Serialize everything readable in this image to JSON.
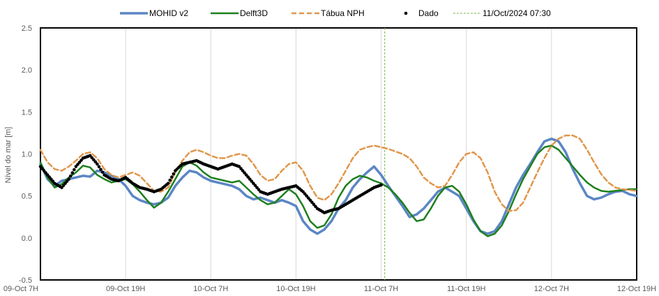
{
  "chart_data": {
    "type": "line",
    "ylabel": "Nível do mar [m]",
    "ylim": [
      -0.5,
      2.5
    ],
    "yticks": [
      "2.5",
      "2.0",
      "1.5",
      "1.0",
      "0.5",
      "0.0",
      "-0.5"
    ],
    "x_start": "09-Oct 7H",
    "x_end": "12-Oct 19H",
    "xticks": [
      "09-Oct 7H",
      "09-Oct 19H",
      "10-Oct 7H",
      "10-Oct 19H",
      "11-Oct 7H",
      "11-Oct 19H",
      "12-Oct 7H",
      "12-Oct 19H"
    ],
    "grid": "vertical",
    "legend": [
      {
        "label": "MOHID v2",
        "color": "#5b86c4",
        "style": "solid"
      },
      {
        "label": "Delft3D",
        "color": "#1d7f1d",
        "style": "solid"
      },
      {
        "label": "Tábua NPH",
        "color": "#e0964a",
        "style": "dashed"
      },
      {
        "label": "Dado",
        "color": "#000000",
        "style": "dots"
      },
      {
        "label": "11/Oct/2024 07:30",
        "color": "#7db544",
        "style": "dashed"
      }
    ],
    "marker_line_hours": 48.5,
    "series": [
      {
        "name": "MOHID v2",
        "color": "#5b86c4",
        "x": [
          0,
          1,
          2,
          3,
          4,
          5,
          6,
          7,
          8,
          9,
          10,
          11,
          12,
          13,
          14,
          15,
          16,
          17,
          18,
          19,
          20,
          21,
          22,
          23,
          24,
          25,
          26,
          27,
          28,
          29,
          30,
          31,
          32,
          33,
          34,
          35,
          36,
          37,
          38,
          39,
          40,
          41,
          42,
          43,
          44,
          45,
          46,
          47,
          48,
          49,
          50,
          51,
          52,
          53,
          54,
          55,
          56,
          57,
          58,
          59,
          60,
          61,
          62,
          63,
          64,
          65,
          66,
          67,
          68,
          69,
          70,
          71,
          72,
          73,
          74,
          75,
          76,
          77,
          78,
          79,
          80,
          81,
          82,
          83,
          84
        ],
        "y": [
          0.88,
          0.7,
          0.62,
          0.68,
          0.7,
          0.72,
          0.74,
          0.73,
          0.8,
          0.78,
          0.74,
          0.7,
          0.62,
          0.5,
          0.45,
          0.42,
          0.4,
          0.42,
          0.48,
          0.62,
          0.72,
          0.8,
          0.78,
          0.72,
          0.68,
          0.66,
          0.64,
          0.62,
          0.58,
          0.5,
          0.46,
          0.48,
          0.45,
          0.42,
          0.45,
          0.42,
          0.38,
          0.2,
          0.1,
          0.05,
          0.1,
          0.2,
          0.35,
          0.45,
          0.6,
          0.7,
          0.78,
          0.85,
          0.75,
          0.62,
          0.5,
          0.38,
          0.25,
          0.28,
          0.35,
          0.45,
          0.55,
          0.6,
          0.55,
          0.5,
          0.35,
          0.2,
          0.08,
          0.05,
          0.08,
          0.2,
          0.4,
          0.6,
          0.75,
          0.88,
          1.02,
          1.15,
          1.18,
          1.15,
          1.02,
          0.82,
          0.65,
          0.5,
          0.46,
          0.48,
          0.52,
          0.55,
          0.56,
          0.52,
          0.5
        ]
      },
      {
        "name": "Delft3D",
        "color": "#1d7f1d",
        "x": [
          0,
          1,
          2,
          3,
          4,
          5,
          6,
          7,
          8,
          9,
          10,
          11,
          12,
          13,
          14,
          15,
          16,
          17,
          18,
          19,
          20,
          21,
          22,
          23,
          24,
          25,
          26,
          27,
          28,
          29,
          30,
          31,
          32,
          33,
          34,
          35,
          36,
          37,
          38,
          39,
          40,
          41,
          42,
          43,
          44,
          45,
          46,
          47,
          48,
          49,
          50,
          51,
          52,
          53,
          54,
          55,
          56,
          57,
          58,
          59,
          60,
          61,
          62,
          63,
          64,
          65,
          66,
          67,
          68,
          69,
          70,
          71,
          72,
          73,
          74,
          75,
          76,
          77,
          78,
          79,
          80,
          81,
          82,
          83,
          84
        ],
        "y": [
          0.9,
          0.72,
          0.6,
          0.64,
          0.72,
          0.78,
          0.86,
          0.84,
          0.75,
          0.7,
          0.66,
          0.68,
          0.7,
          0.64,
          0.55,
          0.45,
          0.36,
          0.42,
          0.55,
          0.7,
          0.85,
          0.9,
          0.86,
          0.78,
          0.72,
          0.7,
          0.68,
          0.66,
          0.68,
          0.6,
          0.52,
          0.45,
          0.4,
          0.42,
          0.5,
          0.58,
          0.52,
          0.38,
          0.2,
          0.12,
          0.15,
          0.28,
          0.48,
          0.62,
          0.7,
          0.74,
          0.72,
          0.68,
          0.65,
          0.6,
          0.52,
          0.42,
          0.3,
          0.2,
          0.22,
          0.35,
          0.5,
          0.6,
          0.62,
          0.55,
          0.4,
          0.22,
          0.08,
          0.02,
          0.05,
          0.15,
          0.32,
          0.52,
          0.7,
          0.85,
          1.0,
          1.08,
          1.1,
          1.05,
          0.95,
          0.85,
          0.75,
          0.66,
          0.6,
          0.56,
          0.55,
          0.56,
          0.57,
          0.58,
          0.58
        ]
      },
      {
        "name": "Tábua NPH",
        "color": "#e0964a",
        "x": [
          0,
          1,
          2,
          3,
          4,
          5,
          6,
          7,
          8,
          9,
          10,
          11,
          12,
          13,
          14,
          15,
          16,
          17,
          18,
          19,
          20,
          21,
          22,
          23,
          24,
          25,
          26,
          27,
          28,
          29,
          30,
          31,
          32,
          33,
          34,
          35,
          36,
          37,
          38,
          39,
          40,
          41,
          42,
          43,
          44,
          45,
          46,
          47,
          48,
          49,
          50,
          51,
          52,
          53,
          54,
          55,
          56,
          57,
          58,
          59,
          60,
          61,
          62,
          63,
          64,
          65,
          66,
          67,
          68,
          69,
          70,
          71,
          72,
          73,
          74,
          75,
          76,
          77,
          78,
          79,
          80,
          81,
          82,
          83,
          84
        ],
        "y": [
          1.05,
          0.9,
          0.82,
          0.8,
          0.85,
          0.92,
          1.0,
          1.02,
          0.95,
          0.82,
          0.75,
          0.72,
          0.75,
          0.78,
          0.74,
          0.65,
          0.56,
          0.55,
          0.6,
          0.78,
          0.92,
          1.02,
          1.05,
          1.02,
          0.98,
          0.95,
          0.95,
          0.98,
          1.0,
          0.98,
          0.88,
          0.75,
          0.68,
          0.7,
          0.8,
          0.88,
          0.9,
          0.8,
          0.62,
          0.48,
          0.45,
          0.52,
          0.65,
          0.8,
          0.95,
          1.05,
          1.08,
          1.1,
          1.08,
          1.06,
          1.03,
          1.0,
          0.95,
          0.85,
          0.72,
          0.65,
          0.6,
          0.62,
          0.75,
          0.9,
          1.0,
          1.02,
          0.95,
          0.78,
          0.55,
          0.4,
          0.32,
          0.33,
          0.42,
          0.6,
          0.78,
          0.95,
          1.1,
          1.18,
          1.22,
          1.22,
          1.18,
          1.05,
          0.9,
          0.76,
          0.66,
          0.6,
          0.58,
          0.57,
          0.56
        ]
      },
      {
        "name": "Dado",
        "color": "#000000",
        "x": [
          0,
          1,
          2,
          3,
          4,
          5,
          6,
          7,
          8,
          9,
          10,
          11,
          12,
          13,
          14,
          15,
          16,
          17,
          18,
          19,
          20,
          21,
          22,
          23,
          24,
          25,
          26,
          27,
          28,
          29,
          30,
          31,
          32,
          33,
          34,
          35,
          36,
          37,
          38,
          39,
          40,
          41,
          42,
          43,
          44,
          45,
          46,
          47,
          48
        ],
        "y": [
          0.85,
          0.75,
          0.65,
          0.6,
          0.7,
          0.85,
          0.95,
          0.98,
          0.88,
          0.75,
          0.7,
          0.68,
          0.72,
          0.65,
          0.6,
          0.58,
          0.55,
          0.58,
          0.65,
          0.8,
          0.88,
          0.9,
          0.92,
          0.88,
          0.85,
          0.82,
          0.85,
          0.88,
          0.85,
          0.75,
          0.65,
          0.55,
          0.52,
          0.55,
          0.58,
          0.6,
          0.62,
          0.55,
          0.45,
          0.35,
          0.3,
          0.33,
          0.35,
          0.4,
          0.45,
          0.5,
          0.55,
          0.6,
          0.63
        ]
      }
    ]
  }
}
